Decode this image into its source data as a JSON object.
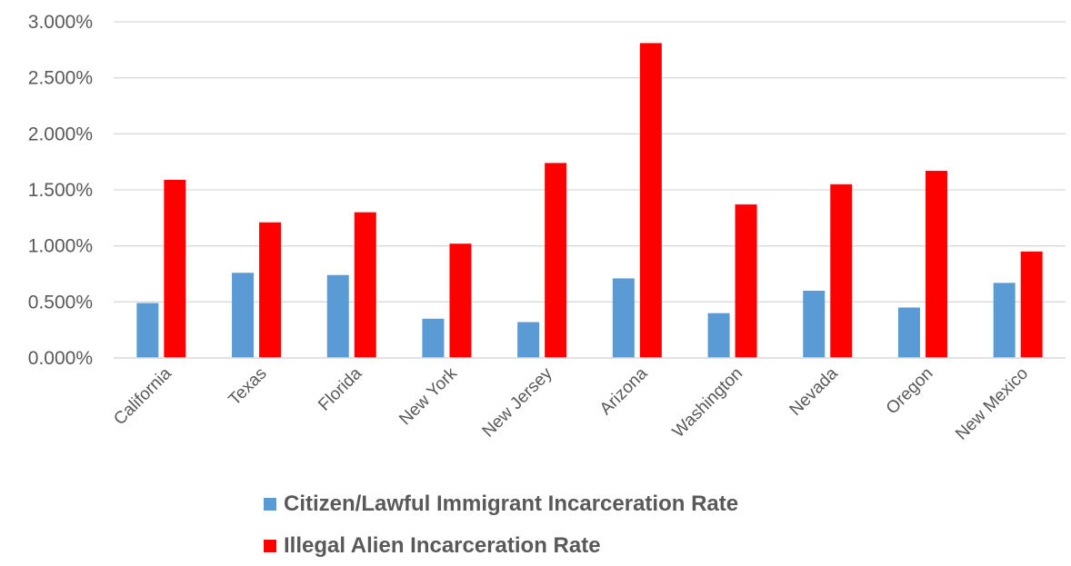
{
  "chart_data": {
    "type": "bar",
    "categories": [
      "California",
      "Texas",
      "Florida",
      "New York",
      "New Jersey",
      "Arizona",
      "Washington",
      "Nevada",
      "Oregon",
      "New Mexico"
    ],
    "series": [
      {
        "name": "Citizen/Lawful Immigrant Incarceration Rate",
        "color": "#5b9bd5",
        "values": [
          0.49,
          0.76,
          0.74,
          0.35,
          0.32,
          0.71,
          0.4,
          0.6,
          0.45,
          0.67
        ]
      },
      {
        "name": "Illegal Alien Incarceration Rate",
        "color": "#ff0000",
        "values": [
          1.59,
          1.21,
          1.3,
          1.02,
          1.74,
          2.81,
          1.37,
          1.55,
          1.67,
          0.95
        ]
      }
    ],
    "y_ticks": [
      "0.000%",
      "0.500%",
      "1.000%",
      "1.500%",
      "2.000%",
      "2.500%",
      "3.000%"
    ],
    "ylim": [
      0,
      3.0
    ],
    "grid": true,
    "legend_position": "bottom-left"
  }
}
